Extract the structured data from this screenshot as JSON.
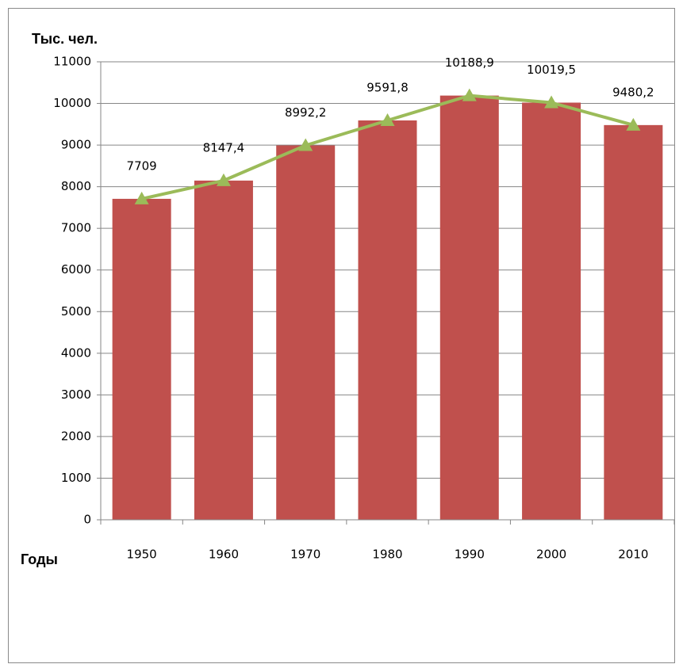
{
  "chart_data": {
    "type": "bar",
    "y_label": "Тыс. чел.",
    "x_label": "Годы",
    "categories": [
      "1950",
      "1960",
      "1970",
      "1980",
      "1990",
      "2000",
      "2010"
    ],
    "series": [
      {
        "type": "bar",
        "color": "#c0504d",
        "values": [
          7709,
          8147.4,
          8992.2,
          9591.8,
          10188.9,
          10019.5,
          9480.2
        ]
      },
      {
        "type": "line",
        "color": "#9bbb59",
        "values": [
          7709,
          8147.4,
          8992.2,
          9591.8,
          10188.9,
          10019.5,
          9480.2
        ],
        "value_labels": [
          "7709",
          "8147,4",
          "8992,2",
          "9591,8",
          "10188,9",
          "10019,5",
          "9480,2"
        ]
      }
    ],
    "ylim": [
      0,
      11000
    ],
    "yticks": [
      0,
      1000,
      2000,
      3000,
      4000,
      5000,
      6000,
      7000,
      8000,
      9000,
      10000,
      11000
    ],
    "grid": true
  }
}
